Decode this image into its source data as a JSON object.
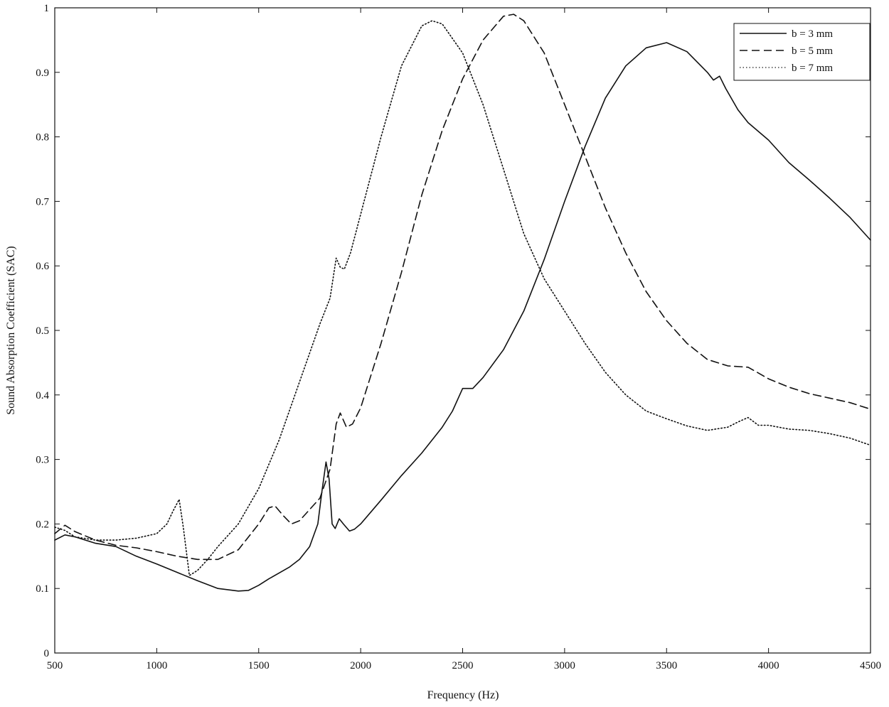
{
  "chart_data": {
    "type": "line",
    "title": "",
    "xlabel": "Frequency (Hz)",
    "ylabel": "Sound Absorption Coefficient (SAC)",
    "xlim": [
      500,
      4500
    ],
    "ylim": [
      0,
      1
    ],
    "xticks": [
      "500",
      "1000",
      "1500",
      "2000",
      "2500",
      "3000",
      "3500",
      "4000",
      "4500"
    ],
    "yticks": [
      "0",
      "0.1",
      "0.2",
      "0.3",
      "0.4",
      "0.5",
      "0.6",
      "0.7",
      "0.8",
      "0.9",
      "1"
    ],
    "grid": false,
    "legend_position": "top-right",
    "series": [
      {
        "name": "b = 3 mm",
        "style": "solid",
        "points": [
          [
            500,
            0.175
          ],
          [
            550,
            0.183
          ],
          [
            600,
            0.18
          ],
          [
            700,
            0.17
          ],
          [
            800,
            0.165
          ],
          [
            900,
            0.15
          ],
          [
            1000,
            0.138
          ],
          [
            1100,
            0.125
          ],
          [
            1200,
            0.112
          ],
          [
            1300,
            0.1
          ],
          [
            1400,
            0.096
          ],
          [
            1450,
            0.097
          ],
          [
            1500,
            0.105
          ],
          [
            1550,
            0.115
          ],
          [
            1600,
            0.124
          ],
          [
            1650,
            0.133
          ],
          [
            1700,
            0.145
          ],
          [
            1750,
            0.165
          ],
          [
            1790,
            0.2
          ],
          [
            1810,
            0.25
          ],
          [
            1830,
            0.296
          ],
          [
            1845,
            0.27
          ],
          [
            1860,
            0.2
          ],
          [
            1875,
            0.193
          ],
          [
            1895,
            0.208
          ],
          [
            1915,
            0.2
          ],
          [
            1945,
            0.189
          ],
          [
            1970,
            0.192
          ],
          [
            2000,
            0.2
          ],
          [
            2100,
            0.237
          ],
          [
            2200,
            0.275
          ],
          [
            2300,
            0.31
          ],
          [
            2400,
            0.35
          ],
          [
            2450,
            0.375
          ],
          [
            2500,
            0.41
          ],
          [
            2550,
            0.41
          ],
          [
            2600,
            0.427
          ],
          [
            2700,
            0.47
          ],
          [
            2800,
            0.53
          ],
          [
            2900,
            0.61
          ],
          [
            3000,
            0.7
          ],
          [
            3100,
            0.785
          ],
          [
            3200,
            0.86
          ],
          [
            3300,
            0.91
          ],
          [
            3400,
            0.938
          ],
          [
            3500,
            0.946
          ],
          [
            3600,
            0.932
          ],
          [
            3700,
            0.9
          ],
          [
            3730,
            0.888
          ],
          [
            3760,
            0.894
          ],
          [
            3790,
            0.875
          ],
          [
            3850,
            0.842
          ],
          [
            3900,
            0.822
          ],
          [
            4000,
            0.795
          ],
          [
            4100,
            0.76
          ],
          [
            4200,
            0.733
          ],
          [
            4300,
            0.705
          ],
          [
            4400,
            0.675
          ],
          [
            4500,
            0.64
          ]
        ]
      },
      {
        "name": "b = 5 mm",
        "style": "dashed",
        "points": [
          [
            500,
            0.185
          ],
          [
            550,
            0.198
          ],
          [
            600,
            0.188
          ],
          [
            700,
            0.175
          ],
          [
            800,
            0.167
          ],
          [
            900,
            0.163
          ],
          [
            1000,
            0.157
          ],
          [
            1100,
            0.15
          ],
          [
            1200,
            0.145
          ],
          [
            1300,
            0.145
          ],
          [
            1400,
            0.16
          ],
          [
            1500,
            0.2
          ],
          [
            1550,
            0.225
          ],
          [
            1580,
            0.228
          ],
          [
            1620,
            0.213
          ],
          [
            1660,
            0.2
          ],
          [
            1700,
            0.205
          ],
          [
            1800,
            0.24
          ],
          [
            1850,
            0.285
          ],
          [
            1880,
            0.355
          ],
          [
            1900,
            0.372
          ],
          [
            1930,
            0.35
          ],
          [
            1960,
            0.355
          ],
          [
            2000,
            0.38
          ],
          [
            2100,
            0.48
          ],
          [
            2200,
            0.59
          ],
          [
            2300,
            0.71
          ],
          [
            2400,
            0.81
          ],
          [
            2500,
            0.89
          ],
          [
            2600,
            0.95
          ],
          [
            2700,
            0.987
          ],
          [
            2750,
            0.99
          ],
          [
            2800,
            0.98
          ],
          [
            2900,
            0.93
          ],
          [
            3000,
            0.85
          ],
          [
            3100,
            0.77
          ],
          [
            3200,
            0.69
          ],
          [
            3300,
            0.62
          ],
          [
            3400,
            0.56
          ],
          [
            3500,
            0.515
          ],
          [
            3600,
            0.48
          ],
          [
            3700,
            0.455
          ],
          [
            3800,
            0.445
          ],
          [
            3900,
            0.443
          ],
          [
            4000,
            0.425
          ],
          [
            4100,
            0.412
          ],
          [
            4200,
            0.402
          ],
          [
            4300,
            0.395
          ],
          [
            4400,
            0.388
          ],
          [
            4500,
            0.378
          ]
        ]
      },
      {
        "name": "b = 7 mm",
        "style": "dotted",
        "points": [
          [
            500,
            0.195
          ],
          [
            550,
            0.19
          ],
          [
            600,
            0.18
          ],
          [
            700,
            0.175
          ],
          [
            800,
            0.175
          ],
          [
            900,
            0.178
          ],
          [
            1000,
            0.185
          ],
          [
            1050,
            0.2
          ],
          [
            1080,
            0.22
          ],
          [
            1110,
            0.238
          ],
          [
            1130,
            0.195
          ],
          [
            1160,
            0.12
          ],
          [
            1200,
            0.128
          ],
          [
            1250,
            0.145
          ],
          [
            1300,
            0.165
          ],
          [
            1400,
            0.2
          ],
          [
            1500,
            0.255
          ],
          [
            1600,
            0.33
          ],
          [
            1700,
            0.42
          ],
          [
            1800,
            0.51
          ],
          [
            1850,
            0.55
          ],
          [
            1880,
            0.612
          ],
          [
            1900,
            0.598
          ],
          [
            1920,
            0.595
          ],
          [
            1950,
            0.62
          ],
          [
            2000,
            0.68
          ],
          [
            2100,
            0.8
          ],
          [
            2200,
            0.91
          ],
          [
            2300,
            0.972
          ],
          [
            2350,
            0.98
          ],
          [
            2400,
            0.975
          ],
          [
            2500,
            0.93
          ],
          [
            2600,
            0.85
          ],
          [
            2700,
            0.75
          ],
          [
            2800,
            0.65
          ],
          [
            2900,
            0.58
          ],
          [
            3000,
            0.53
          ],
          [
            3100,
            0.48
          ],
          [
            3200,
            0.435
          ],
          [
            3300,
            0.4
          ],
          [
            3400,
            0.375
          ],
          [
            3500,
            0.363
          ],
          [
            3600,
            0.352
          ],
          [
            3700,
            0.345
          ],
          [
            3800,
            0.35
          ],
          [
            3850,
            0.358
          ],
          [
            3900,
            0.365
          ],
          [
            3950,
            0.353
          ],
          [
            4000,
            0.353
          ],
          [
            4100,
            0.347
          ],
          [
            4200,
            0.345
          ],
          [
            4300,
            0.34
          ],
          [
            4400,
            0.333
          ],
          [
            4500,
            0.322
          ]
        ]
      }
    ]
  }
}
